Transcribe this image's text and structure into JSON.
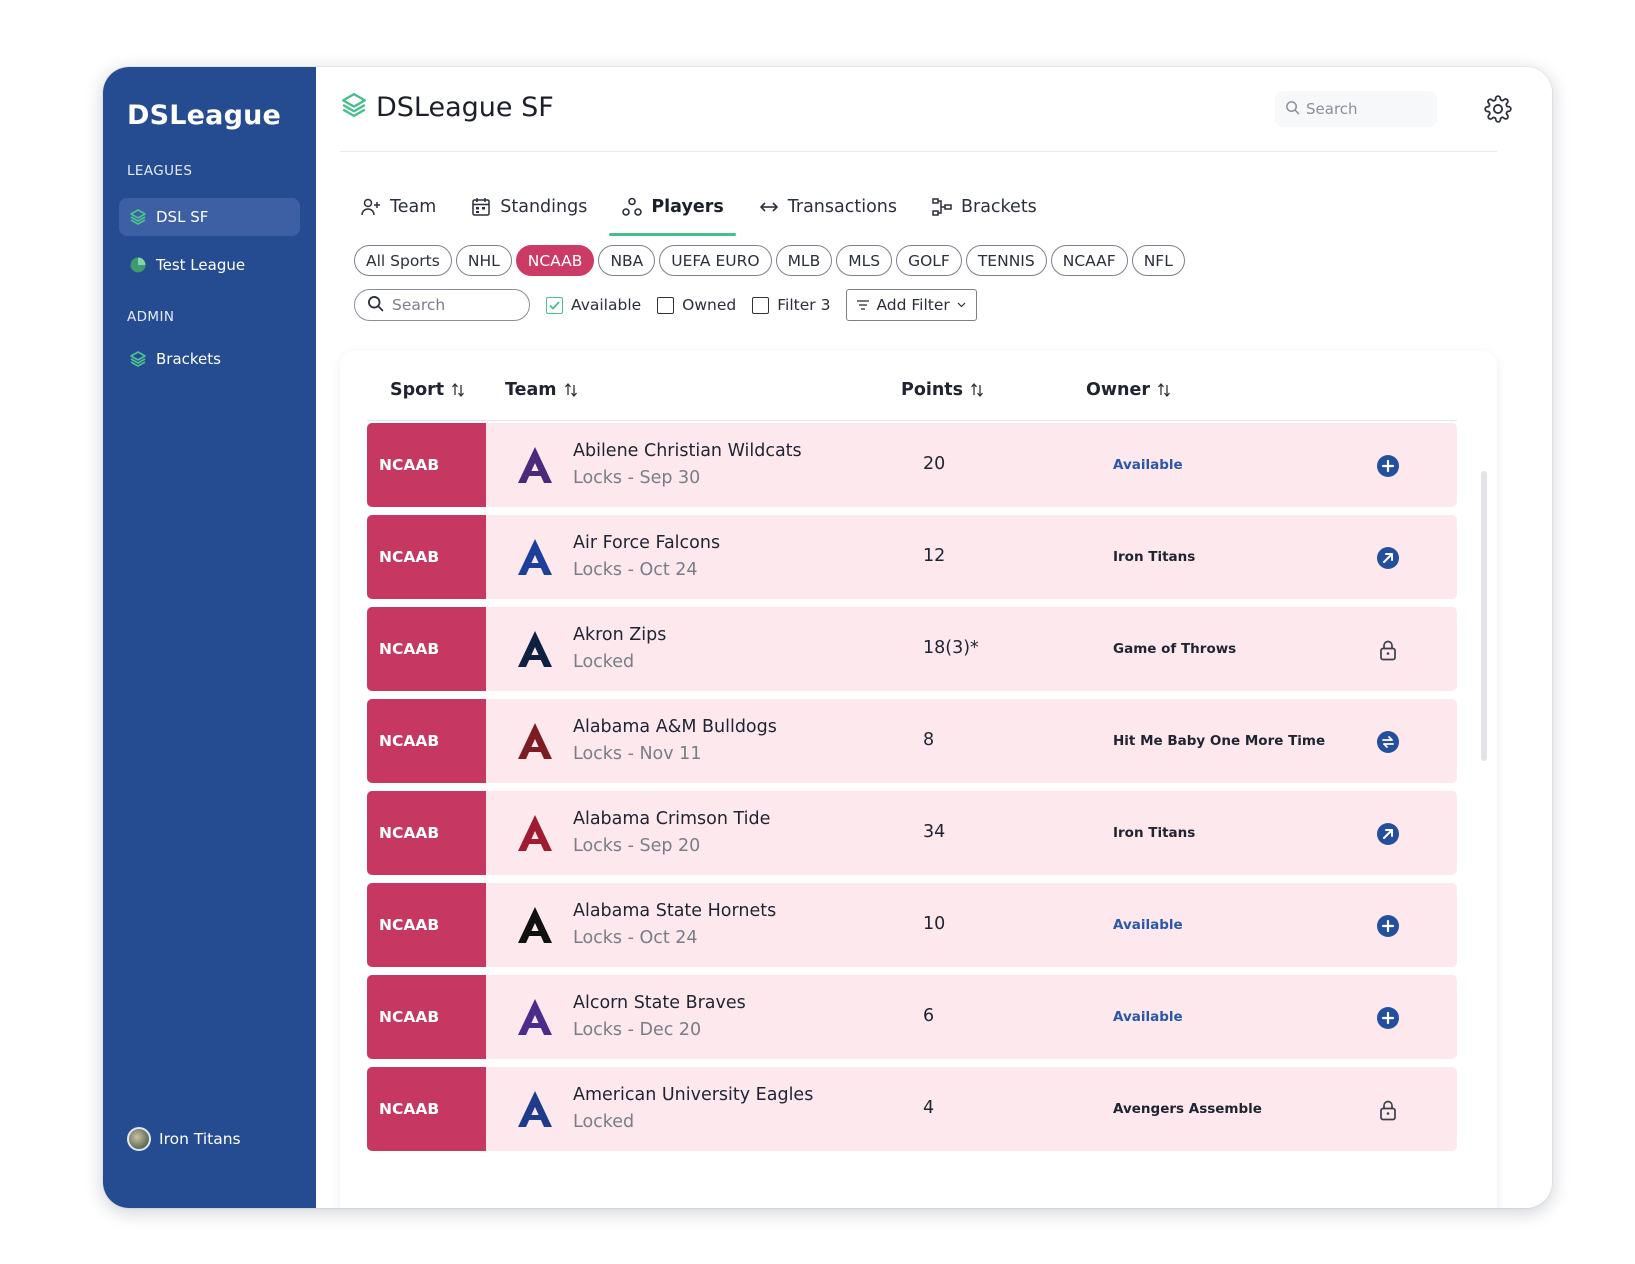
{
  "sidebar": {
    "brand": "DSLeague",
    "leagues_label": "LEAGUES",
    "leagues": [
      {
        "label": "DSL SF",
        "icon": "layers-icon",
        "active": true
      },
      {
        "label": "Test League",
        "icon": "pie-icon",
        "active": false
      }
    ],
    "admin_label": "ADMIN",
    "admin_items": [
      {
        "label": "Brackets",
        "icon": "layers-icon"
      }
    ],
    "user": {
      "name": "Iron Titans",
      "icon": "avatar"
    }
  },
  "header": {
    "title": "DSLeague SF",
    "search_placeholder": "Search",
    "settings_icon": "gear-icon"
  },
  "tabs": [
    {
      "label": "Team",
      "icon": "user-plus-icon",
      "active": false
    },
    {
      "label": "Standings",
      "icon": "calendar-icon",
      "active": false
    },
    {
      "label": "Players",
      "icon": "players-icon",
      "active": true
    },
    {
      "label": "Transactions",
      "icon": "swap-icon",
      "active": false
    },
    {
      "label": "Brackets",
      "icon": "bracket-icon",
      "active": false
    }
  ],
  "sport_chips": [
    {
      "label": "All Sports",
      "active": false
    },
    {
      "label": "NHL",
      "active": false
    },
    {
      "label": "NCAAB",
      "active": true
    },
    {
      "label": "NBA",
      "active": false
    },
    {
      "label": "UEFA EURO",
      "active": false
    },
    {
      "label": "MLB",
      "active": false
    },
    {
      "label": "MLS",
      "active": false
    },
    {
      "label": "GOLF",
      "active": false
    },
    {
      "label": "TENNIS",
      "active": false
    },
    {
      "label": "NCAAF",
      "active": false
    },
    {
      "label": "NFL",
      "active": false
    }
  ],
  "filters": {
    "search_placeholder": "Search",
    "available": {
      "label": "Available",
      "checked": true
    },
    "owned": {
      "label": "Owned",
      "checked": false
    },
    "filter3": {
      "label": "Filter 3",
      "checked": false
    },
    "add_filter": "Add Filter"
  },
  "table": {
    "columns": [
      "Sport",
      "Team",
      "Points",
      "Owner"
    ],
    "rows": [
      {
        "sport": "NCAAB",
        "team": "Abilene Christian Wildcats",
        "sub": "Locks - Sep 30",
        "points": "20",
        "owner": "Available",
        "available": true,
        "action": "add-icon",
        "logo_color": "#4b2a7b"
      },
      {
        "sport": "NCAAB",
        "team": "Air Force Falcons",
        "sub": "Locks - Oct 24",
        "points": "12",
        "owner": "Iron Titans",
        "available": false,
        "action": "arrow-up-right-icon",
        "logo_color": "#1b3f9a"
      },
      {
        "sport": "NCAAB",
        "team": "Akron Zips",
        "sub": "Locked",
        "points": "18(3)*",
        "owner": "Game of Throws",
        "available": false,
        "action": "lock-icon",
        "logo_color": "#0f2040"
      },
      {
        "sport": "NCAAB",
        "team": "Alabama A&M Bulldogs",
        "sub": "Locks - Nov 11",
        "points": "8",
        "owner": "Hit Me Baby One More Time",
        "available": false,
        "action": "swap-icon",
        "logo_color": "#7b1d22"
      },
      {
        "sport": "NCAAB",
        "team": "Alabama Crimson Tide",
        "sub": "Locks - Sep 20",
        "points": "34",
        "owner": "Iron Titans",
        "available": false,
        "action": "arrow-up-right-icon",
        "logo_color": "#9e1b32"
      },
      {
        "sport": "NCAAB",
        "team": "Alabama State Hornets",
        "sub": "Locks - Oct 24",
        "points": "10",
        "owner": "Available",
        "available": true,
        "action": "add-icon",
        "logo_color": "#111111"
      },
      {
        "sport": "NCAAB",
        "team": "Alcorn State Braves",
        "sub": "Locks - Dec 20",
        "points": "6",
        "owner": "Available",
        "available": true,
        "action": "add-icon",
        "logo_color": "#4b2c8a"
      },
      {
        "sport": "NCAAB",
        "team": "American University Eagles",
        "sub": "Locked",
        "points": "4",
        "owner": "Avengers Assemble",
        "available": false,
        "action": "lock-icon",
        "logo_color": "#1f3b8c"
      }
    ]
  },
  "colors": {
    "sidebar": "#254b91",
    "accent": "#45c08c",
    "chip_active": "#cc3a66",
    "sport_badge": "#c63861",
    "row_bg": "#fde8ee",
    "action_icon": "#2a58a6"
  }
}
